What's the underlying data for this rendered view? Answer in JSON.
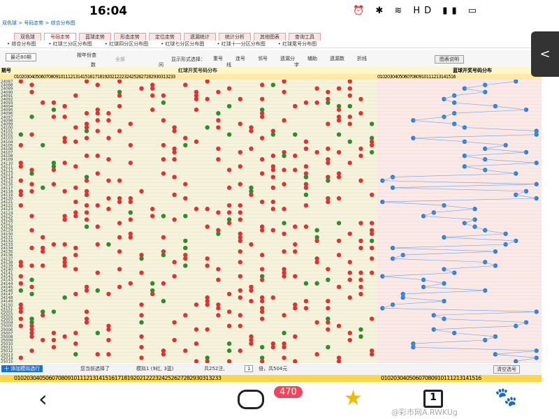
{
  "status_bar": {
    "time": "16:04"
  },
  "breadcrumb": "双色球 > 号码走势 > 综合分布图",
  "tabs": [
    "双色球",
    "号码走势",
    "蓝球走势",
    "形态走势",
    "定位走势",
    "遗漏统计",
    "统计分析",
    "其他图表",
    "查询工具"
  ],
  "sub_tabs": [
    "• 综合分布图",
    "• 红球三分区分布图",
    "• 红球四分区分布图",
    "• 红球七分区分布图",
    "• 红球十一分区分布图",
    "• 红球尾号分布图"
  ],
  "options": {
    "period": "最近80期",
    "by_year": "按年份查",
    "all": "全部",
    "display": "显示形式选择：",
    "checks": [
      "重号",
      "连号",
      "邻号",
      "遗漏分",
      "辅助",
      "遗漏数",
      "折线"
    ],
    "help": "图表说明",
    "row2": [
      "数",
      "间",
      "线",
      "字"
    ]
  },
  "table": {
    "issue_header": "期号",
    "red_header": "红球开奖号码分布",
    "blue_header": "蓝球开奖号码分布",
    "red_numbers": "010203040506070809101112131415161718192021222324252627282930313233",
    "blue_numbers": "01020304050607080910111213141516",
    "issues": [
      "24087",
      "24088",
      "24089",
      "24090",
      "24091",
      "24092",
      "24093",
      "24094",
      "24095",
      "24096",
      "24097",
      "24098",
      "24099",
      "24100",
      "24101",
      "24102",
      "24103",
      "24104",
      "24105",
      "24106",
      "24107",
      "24108",
      "24109",
      "24110",
      "24111",
      "24112",
      "24113",
      "24114",
      "24115",
      "24116",
      "24117",
      "24118",
      "24119",
      "24120",
      "24121",
      "24122",
      "24123",
      "24124",
      "24125",
      "24126",
      "24127",
      "24128",
      "24129",
      "24130",
      "24131",
      "24132",
      "24133",
      "24134",
      "24135",
      "24136",
      "24137",
      "24138",
      "24139",
      "24140",
      "24141",
      "24142",
      "24143",
      "24144",
      "24145",
      "24146",
      "24147",
      "24148",
      "24149",
      "24150",
      "24151",
      "25001",
      "25002",
      "25003",
      "25004",
      "25005",
      "25006",
      "25007",
      "25008",
      "25009",
      "25010",
      "25011",
      "25012",
      "25013",
      "25014",
      "25015"
    ]
  },
  "footer": {
    "add": "十 添加模拟选行",
    "selected": "您当前选择了",
    "sim": "模拟1 (9红, 3蓝)",
    "count": "共252注,",
    "multiple": "1",
    "total": "倍，共504元",
    "clear": "清空选号"
  },
  "nav": {
    "badge": "470",
    "tab_count": "1",
    "watermark": "@彩市网A.RWKUg"
  }
}
